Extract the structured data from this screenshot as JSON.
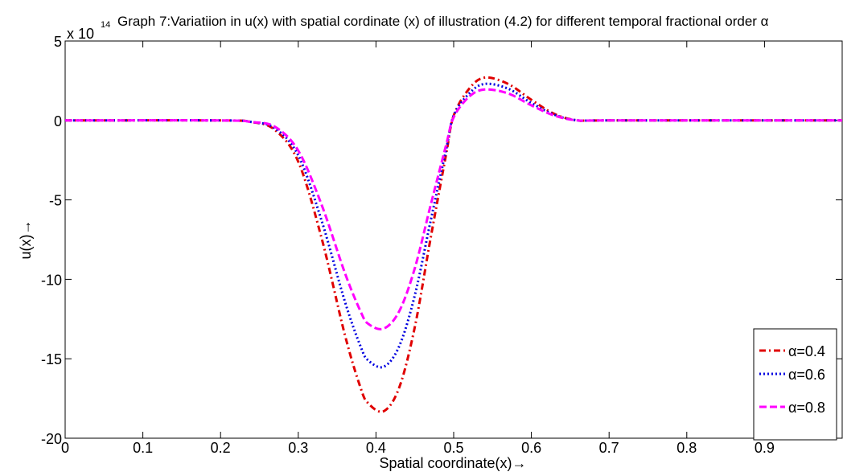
{
  "chart_data": {
    "type": "line",
    "title": "Graph 7:Variatiion in u(x) with spatial cordinate (x) of illustration (4.2) for different temporal fractional order α",
    "xlabel": "Spatial coordinate(x)→",
    "ylabel": "u(x)→",
    "y_scale_base": "x 10",
    "y_scale_exponent": "14",
    "xlim": [
      0,
      1
    ],
    "ylim": [
      -20,
      5
    ],
    "xticks": [
      0,
      0.1,
      0.2,
      0.3,
      0.4,
      0.5,
      0.6,
      0.7,
      0.8,
      0.9
    ],
    "xtick_labels": [
      "0",
      "0.1",
      "0.2",
      "0.3",
      "0.4",
      "0.5",
      "0.6",
      "0.7",
      "0.8",
      "0.9"
    ],
    "yticks": [
      5,
      0,
      -5,
      -10,
      -15,
      -20
    ],
    "ytick_labels": [
      "5",
      "0",
      "-5",
      "-10",
      "-15",
      "-20"
    ],
    "grid": false,
    "legend_position": "bottom-right",
    "x": [
      0,
      0.2,
      0.24,
      0.27,
      0.3,
      0.33,
      0.36,
      0.38,
      0.39,
      0.41,
      0.43,
      0.45,
      0.47,
      0.49,
      0.5,
      0.52,
      0.54,
      0.57,
      0.6,
      0.63,
      0.66,
      0.7,
      1.0
    ],
    "series": [
      {
        "name": "α=0.4",
        "color": "#e00000",
        "dash": "dashdot",
        "values": [
          0,
          0,
          -0.1,
          -0.6,
          -2.6,
          -7.4,
          -13.5,
          -16.8,
          -17.8,
          -18.3,
          -16.8,
          -13,
          -7.5,
          -2.2,
          0.3,
          2.0,
          2.7,
          2.3,
          1.3,
          0.4,
          0.0,
          0,
          0
        ]
      },
      {
        "name": "α=0.6",
        "color": "#0000e0",
        "dash": "dotted",
        "values": [
          0,
          0,
          -0.1,
          -0.5,
          -2.2,
          -6.3,
          -11.4,
          -14.2,
          -15.1,
          -15.5,
          -14.2,
          -11,
          -6.4,
          -1.9,
          0.3,
          1.7,
          2.3,
          2.0,
          1.1,
          0.35,
          0.0,
          0,
          0
        ]
      },
      {
        "name": "α=0.8",
        "color": "#ff00ff",
        "dash": "dashed",
        "values": [
          0,
          0,
          -0.1,
          -0.4,
          -1.9,
          -5.3,
          -9.6,
          -12.0,
          -12.8,
          -13.1,
          -12.0,
          -9.3,
          -5.4,
          -1.6,
          0.2,
          1.5,
          1.95,
          1.7,
          0.95,
          0.3,
          0.0,
          0,
          0
        ]
      }
    ]
  }
}
